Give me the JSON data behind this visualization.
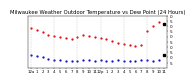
{
  "title": "Milwaukee Weather Outdoor Temperature vs Dew Point (24 Hours)",
  "title_fontsize": 3.8,
  "background_color": "#ffffff",
  "temp_color": "#dd0000",
  "dew_color": "#0000cc",
  "black_color": "#000000",
  "grid_color": "#aaaaaa",
  "temp_data": [
    58,
    56,
    54,
    52,
    51,
    50,
    49,
    48,
    50,
    52,
    51,
    50,
    49,
    48,
    46,
    44,
    43,
    42,
    41,
    42,
    55,
    60,
    64,
    62
  ],
  "dew_data": [
    32,
    31,
    30,
    29,
    28,
    28,
    27,
    27,
    27,
    28,
    28,
    27,
    28,
    27,
    27,
    28,
    27,
    27,
    27,
    28,
    28,
    27,
    28,
    32
  ],
  "ylim": [
    20,
    70
  ],
  "yticks": [
    25,
    30,
    35,
    40,
    45,
    50,
    55,
    60,
    65,
    70
  ],
  "ytick_labels": [
    "5",
    "0",
    "5",
    "0",
    "5",
    "0",
    "5",
    "0",
    "5",
    "0"
  ],
  "ytick_fontsize": 3.0,
  "xtick_fontsize": 2.8,
  "hours": [
    "12a",
    "1",
    "2",
    "3",
    "4",
    "5",
    "6",
    "7",
    "8",
    "9",
    "10",
    "11",
    "12p",
    "1",
    "2",
    "3",
    "4",
    "5",
    "6",
    "7",
    "8",
    "9",
    "10",
    "11"
  ]
}
